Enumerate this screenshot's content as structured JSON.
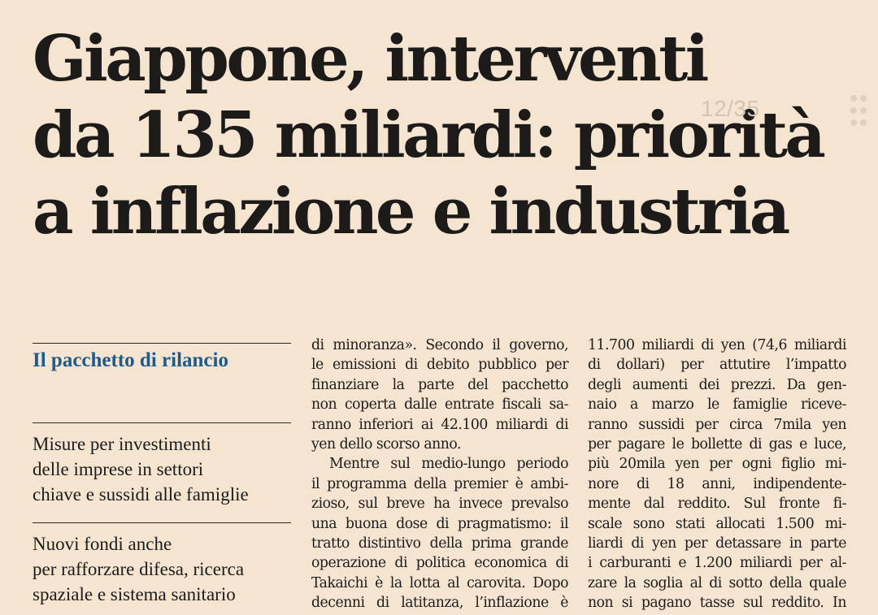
{
  "headline": {
    "lines": [
      "Giappone, interventi",
      "da 135 miliardi: priorità",
      "a inflazione e industria"
    ]
  },
  "page_indicator": "12/35",
  "sidebar": {
    "title": "Il pacchetto di rilancio",
    "items": [
      "Misure per investimenti delle imprese in settori chiave e sussidi alle famiglie",
      "Nuovi fondi anche per rafforzare difesa, ricerca spaziale e sistema sanitario"
    ],
    "item_lines": [
      [
        "Misure per investimenti",
        "delle imprese in settori",
        "chiave e sussidi alle famiglie"
      ],
      [
        "Nuovi fondi anche",
        "per rafforzare difesa, ricerca",
        "spaziale e sistema sanitario"
      ]
    ]
  },
  "article": {
    "column_2": [
      "di minoranza». Secondo il governo,",
      "le emissioni di debito pubblico per",
      "finanziare la parte del pacchetto",
      "non coperta dalle entrate fiscali sa-",
      "ranno inferiori ai 42.100 miliardi di",
      "yen dello scorso anno.",
      "Mentre sul medio-lungo periodo",
      "il programma della premier è ambi-",
      "zioso, sul breve ha invece prevalso",
      "una buona dose di pragmatismo: il",
      "tratto distintivo della prima grande",
      "operazione di politica economica di",
      "Takaichi è la lotta al carovita. Dopo",
      "decenni di latitanza, l’inflazione è"
    ],
    "column_3": [
      "11.700 miliardi di yen (74,6 miliardi",
      "di dollari) per attutire l’impatto",
      "degli aumenti dei prezzi. Da gen-",
      "naio a marzo le famiglie riceve-",
      "ranno sussidi per circa 7mila yen",
      "per pagare le bollette di gas e luce,",
      "più 20mila yen per ogni figlio mi-",
      "nore di 18 anni, indipendente-",
      "mente dal reddito. Sul fronte fi-",
      "scale sono stati allocati 1.500 mi-",
      "liardi di yen per detassare in parte",
      "i carburanti e 1.200 miliardi per al-",
      "zare la soglia al di sotto della quale",
      "non si pagano tasse sul reddito. In"
    ]
  }
}
